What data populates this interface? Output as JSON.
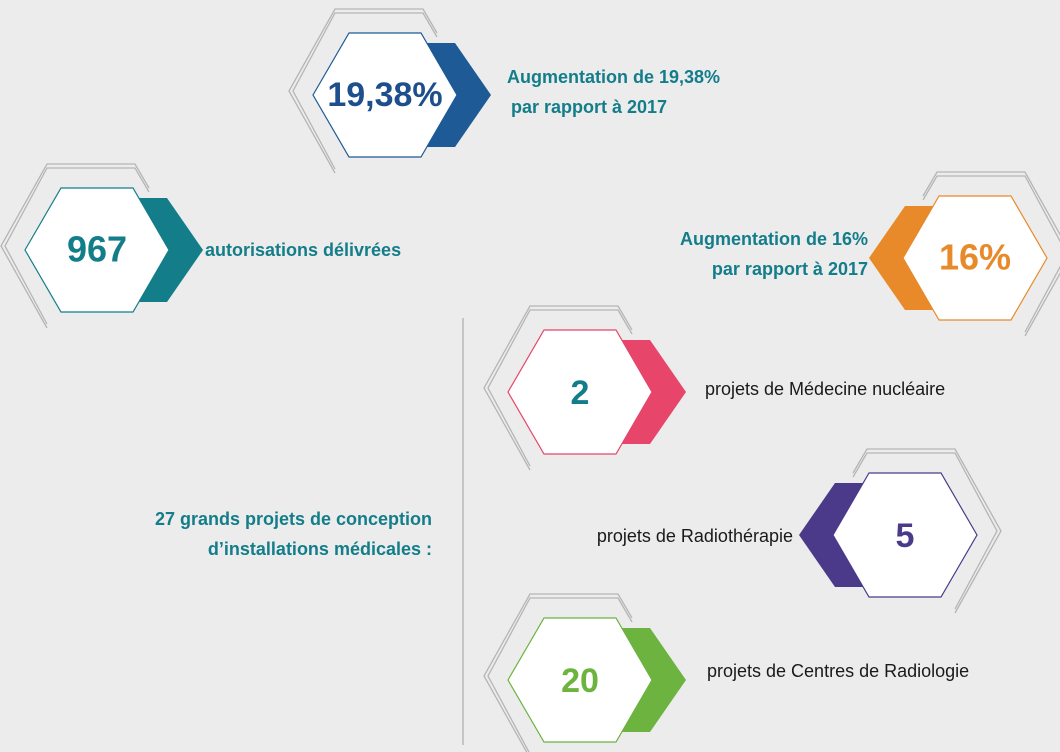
{
  "highlights": [
    {
      "value": "19,38%",
      "caption": [
        "Augmentation de 19,38%",
        "par rapport à 2017"
      ],
      "accent": "#1d5a96",
      "text_color": "#1d4f8c"
    },
    {
      "value": "967",
      "caption": [
        "autorisations délivrées"
      ],
      "accent": "#137d8a",
      "text_color": "#137d8a"
    },
    {
      "value": "16%",
      "caption": [
        "Augmentation de 16%",
        "par rapport à 2017"
      ],
      "accent": "#e8892a",
      "text_color": "#e8892a"
    }
  ],
  "projects": {
    "caption": [
      "27 grands projets de conception",
      "d’installations médicales :"
    ],
    "items": [
      {
        "value": "2",
        "caption": "projets de Médecine nucléaire",
        "accent": "#e8456a",
        "text_color": "#137d8a"
      },
      {
        "value": "5",
        "caption": "projets de Radiothérapie",
        "accent": "#4b3a8a",
        "text_color": "#4b3a8a"
      },
      {
        "value": "20",
        "caption": "projets de Centres de Radiologie",
        "accent": "#6db33f",
        "text_color": "#6db33f"
      }
    ]
  }
}
